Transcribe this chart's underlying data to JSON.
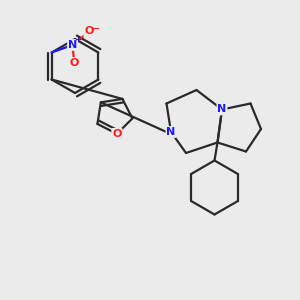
{
  "bg_color": "#ebebeb",
  "bond_color": "#2a2a2a",
  "N_color": "#1a1aff",
  "O_color": "#ff1a1a",
  "lw": 1.6,
  "dbo": 0.12,
  "xlim": [
    0,
    10
  ],
  "ylim": [
    0,
    10
  ]
}
